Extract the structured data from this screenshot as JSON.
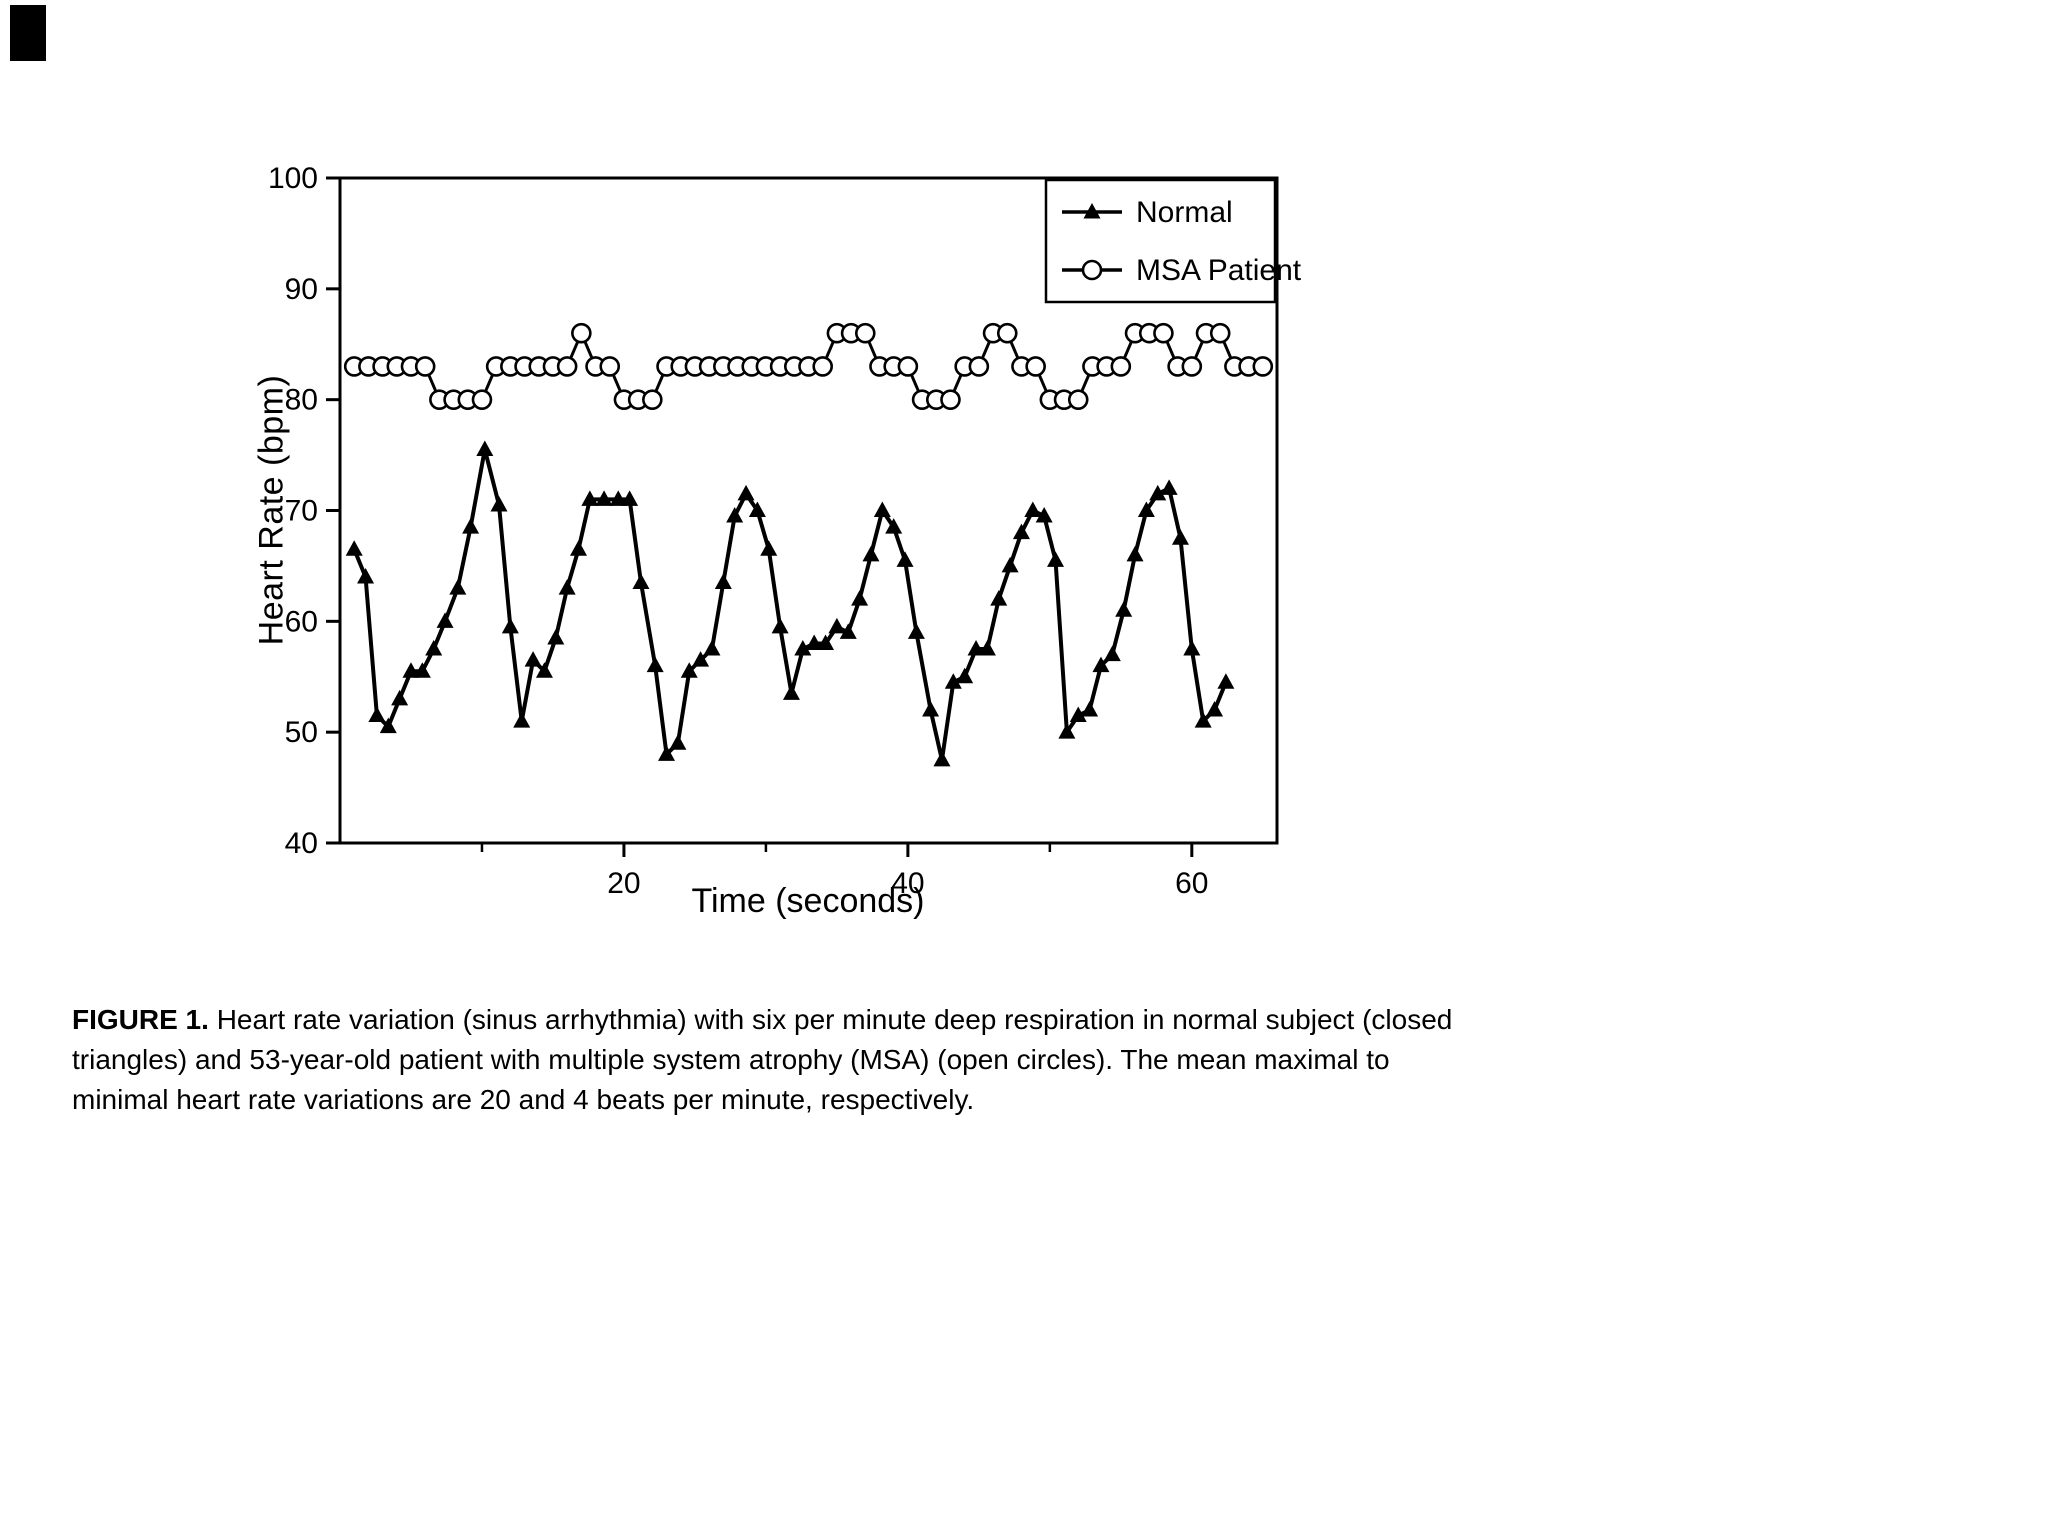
{
  "figure": {
    "caption_label": "FIGURE 1.",
    "caption_text": "Heart rate variation (sinus arrhythmia) with six per minute deep respiration in normal subject (closed triangles) and 53-year-old patient with multiple system atrophy (MSA) (open circles). The mean maximal to minimal heart rate variations are 20 and 4 beats per minute, respectively."
  },
  "chart_data": {
    "type": "line",
    "title": "",
    "xlabel": "Time (seconds)",
    "ylabel": "Heart Rate (bpm)",
    "xlim": [
      0,
      66
    ],
    "ylim": [
      40,
      100
    ],
    "x_major_ticks": [
      20,
      40,
      60
    ],
    "x_minor_ticks": [
      10,
      30,
      50
    ],
    "y_ticks": [
      40,
      50,
      60,
      70,
      80,
      90,
      100
    ],
    "grid": false,
    "legend_position": "top-right",
    "line_color": "#000000",
    "series": [
      {
        "name": "Normal",
        "marker": "triangle",
        "color": "#000000",
        "points": [
          [
            1.0,
            66.5
          ],
          [
            1.8,
            64.0
          ],
          [
            2.6,
            51.5
          ],
          [
            3.4,
            50.5
          ],
          [
            4.2,
            53.0
          ],
          [
            5.0,
            55.5
          ],
          [
            5.8,
            55.5
          ],
          [
            6.6,
            57.5
          ],
          [
            7.4,
            60.0
          ],
          [
            8.3,
            63.0
          ],
          [
            9.2,
            68.5
          ],
          [
            10.2,
            75.5
          ],
          [
            11.2,
            70.5
          ],
          [
            12.0,
            59.5
          ],
          [
            12.8,
            51.0
          ],
          [
            13.6,
            56.5
          ],
          [
            14.4,
            55.5
          ],
          [
            15.2,
            58.5
          ],
          [
            16.0,
            63.0
          ],
          [
            16.8,
            66.5
          ],
          [
            17.6,
            71.0
          ],
          [
            18.6,
            71.0
          ],
          [
            19.6,
            71.0
          ],
          [
            20.4,
            71.0
          ],
          [
            21.2,
            63.5
          ],
          [
            22.2,
            56.0
          ],
          [
            23.0,
            48.0
          ],
          [
            23.8,
            49.0
          ],
          [
            24.6,
            55.5
          ],
          [
            25.4,
            56.5
          ],
          [
            26.2,
            57.5
          ],
          [
            27.0,
            63.5
          ],
          [
            27.8,
            69.5
          ],
          [
            28.6,
            71.5
          ],
          [
            29.4,
            70.0
          ],
          [
            30.2,
            66.5
          ],
          [
            31.0,
            59.5
          ],
          [
            31.8,
            53.5
          ],
          [
            32.6,
            57.5
          ],
          [
            33.4,
            58.0
          ],
          [
            34.2,
            58.0
          ],
          [
            35.0,
            59.5
          ],
          [
            35.8,
            59.0
          ],
          [
            36.6,
            62.0
          ],
          [
            37.4,
            66.0
          ],
          [
            38.2,
            70.0
          ],
          [
            39.0,
            68.5
          ],
          [
            39.8,
            65.5
          ],
          [
            40.6,
            59.0
          ],
          [
            41.6,
            52.0
          ],
          [
            42.4,
            47.5
          ],
          [
            43.2,
            54.5
          ],
          [
            44.0,
            55.0
          ],
          [
            44.8,
            57.5
          ],
          [
            45.6,
            57.5
          ],
          [
            46.4,
            62.0
          ],
          [
            47.2,
            65.0
          ],
          [
            48.0,
            68.0
          ],
          [
            48.8,
            70.0
          ],
          [
            49.6,
            69.5
          ],
          [
            50.4,
            65.5
          ],
          [
            51.2,
            50.0
          ],
          [
            52.0,
            51.5
          ],
          [
            52.8,
            52.0
          ],
          [
            53.6,
            56.0
          ],
          [
            54.4,
            57.0
          ],
          [
            55.2,
            61.0
          ],
          [
            56.0,
            66.0
          ],
          [
            56.8,
            70.0
          ],
          [
            57.6,
            71.5
          ],
          [
            58.4,
            72.0
          ],
          [
            59.2,
            67.5
          ],
          [
            60.0,
            57.5
          ],
          [
            60.8,
            51.0
          ],
          [
            61.6,
            52.0
          ],
          [
            62.4,
            54.5
          ]
        ]
      },
      {
        "name": "MSA Patient",
        "marker": "open-circle",
        "color": "#000000",
        "points": [
          [
            1,
            83
          ],
          [
            2,
            83
          ],
          [
            3,
            83
          ],
          [
            4,
            83
          ],
          [
            5,
            83
          ],
          [
            6,
            83
          ],
          [
            7,
            80
          ],
          [
            8,
            80
          ],
          [
            9,
            80
          ],
          [
            10,
            80
          ],
          [
            11,
            83
          ],
          [
            12,
            83
          ],
          [
            13,
            83
          ],
          [
            14,
            83
          ],
          [
            15,
            83
          ],
          [
            16,
            83
          ],
          [
            17,
            86
          ],
          [
            18,
            83
          ],
          [
            19,
            83
          ],
          [
            20,
            80
          ],
          [
            21,
            80
          ],
          [
            22,
            80
          ],
          [
            23,
            83
          ],
          [
            24,
            83
          ],
          [
            25,
            83
          ],
          [
            26,
            83
          ],
          [
            27,
            83
          ],
          [
            28,
            83
          ],
          [
            29,
            83
          ],
          [
            30,
            83
          ],
          [
            31,
            83
          ],
          [
            32,
            83
          ],
          [
            33,
            83
          ],
          [
            34,
            83
          ],
          [
            35,
            86
          ],
          [
            36,
            86
          ],
          [
            37,
            86
          ],
          [
            38,
            83
          ],
          [
            39,
            83
          ],
          [
            40,
            83
          ],
          [
            41,
            80
          ],
          [
            42,
            80
          ],
          [
            43,
            80
          ],
          [
            44,
            83
          ],
          [
            45,
            83
          ],
          [
            46,
            86
          ],
          [
            47,
            86
          ],
          [
            48,
            83
          ],
          [
            49,
            83
          ],
          [
            50,
            80
          ],
          [
            51,
            80
          ],
          [
            52,
            80
          ],
          [
            53,
            83
          ],
          [
            54,
            83
          ],
          [
            55,
            83
          ],
          [
            56,
            86
          ],
          [
            57,
            86
          ],
          [
            58,
            86
          ],
          [
            59,
            83
          ],
          [
            60,
            83
          ],
          [
            61,
            86
          ],
          [
            62,
            86
          ],
          [
            63,
            83
          ],
          [
            64,
            83
          ],
          [
            65,
            83
          ]
        ]
      }
    ]
  }
}
